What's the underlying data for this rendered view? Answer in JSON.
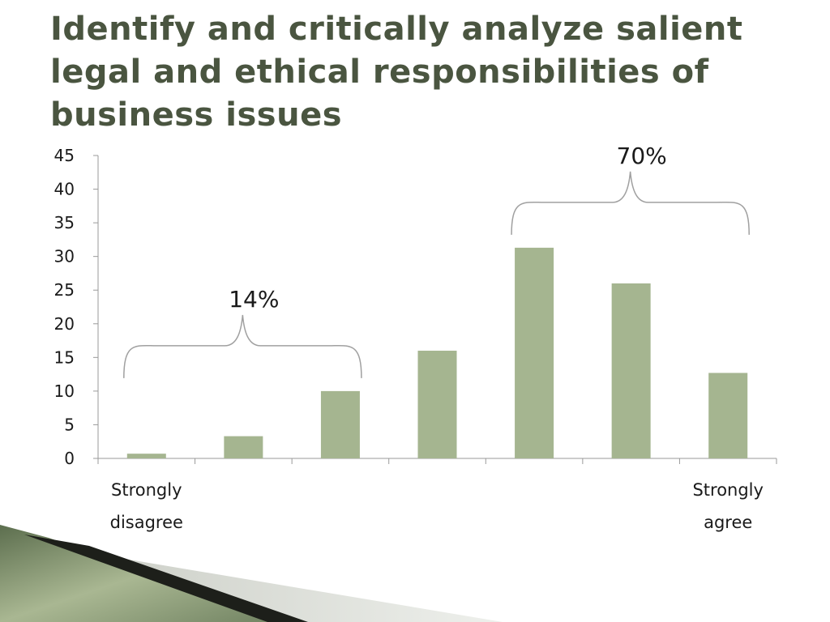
{
  "slide": {
    "title": "Identify and critically analyze salient legal and ethical responsibilities of business issues"
  },
  "colors": {
    "bar": "#a5b590",
    "title": "#4a5540",
    "axis": "#9a9a9a",
    "brace": "#a0a0a0"
  },
  "chart_data": {
    "type": "bar",
    "categories": [
      "Strongly disagree",
      "",
      "",
      "",
      "",
      "",
      "Strongly agree"
    ],
    "category_labels": [
      [
        "Strongly",
        "disagree"
      ],
      [],
      [],
      [],
      [],
      [],
      [
        "Strongly",
        "agree"
      ]
    ],
    "values": [
      0.7,
      3.3,
      10,
      16,
      31.3,
      26,
      12.7
    ],
    "yticks": [
      0,
      5,
      10,
      15,
      20,
      25,
      30,
      35,
      40,
      45
    ],
    "ylim": [
      0,
      45
    ],
    "grid": false,
    "legend": "none",
    "annotations": [
      {
        "text": "14%",
        "from_category": 0,
        "to_category": 2
      },
      {
        "text": "70%",
        "from_category": 4,
        "to_category": 6
      }
    ]
  }
}
